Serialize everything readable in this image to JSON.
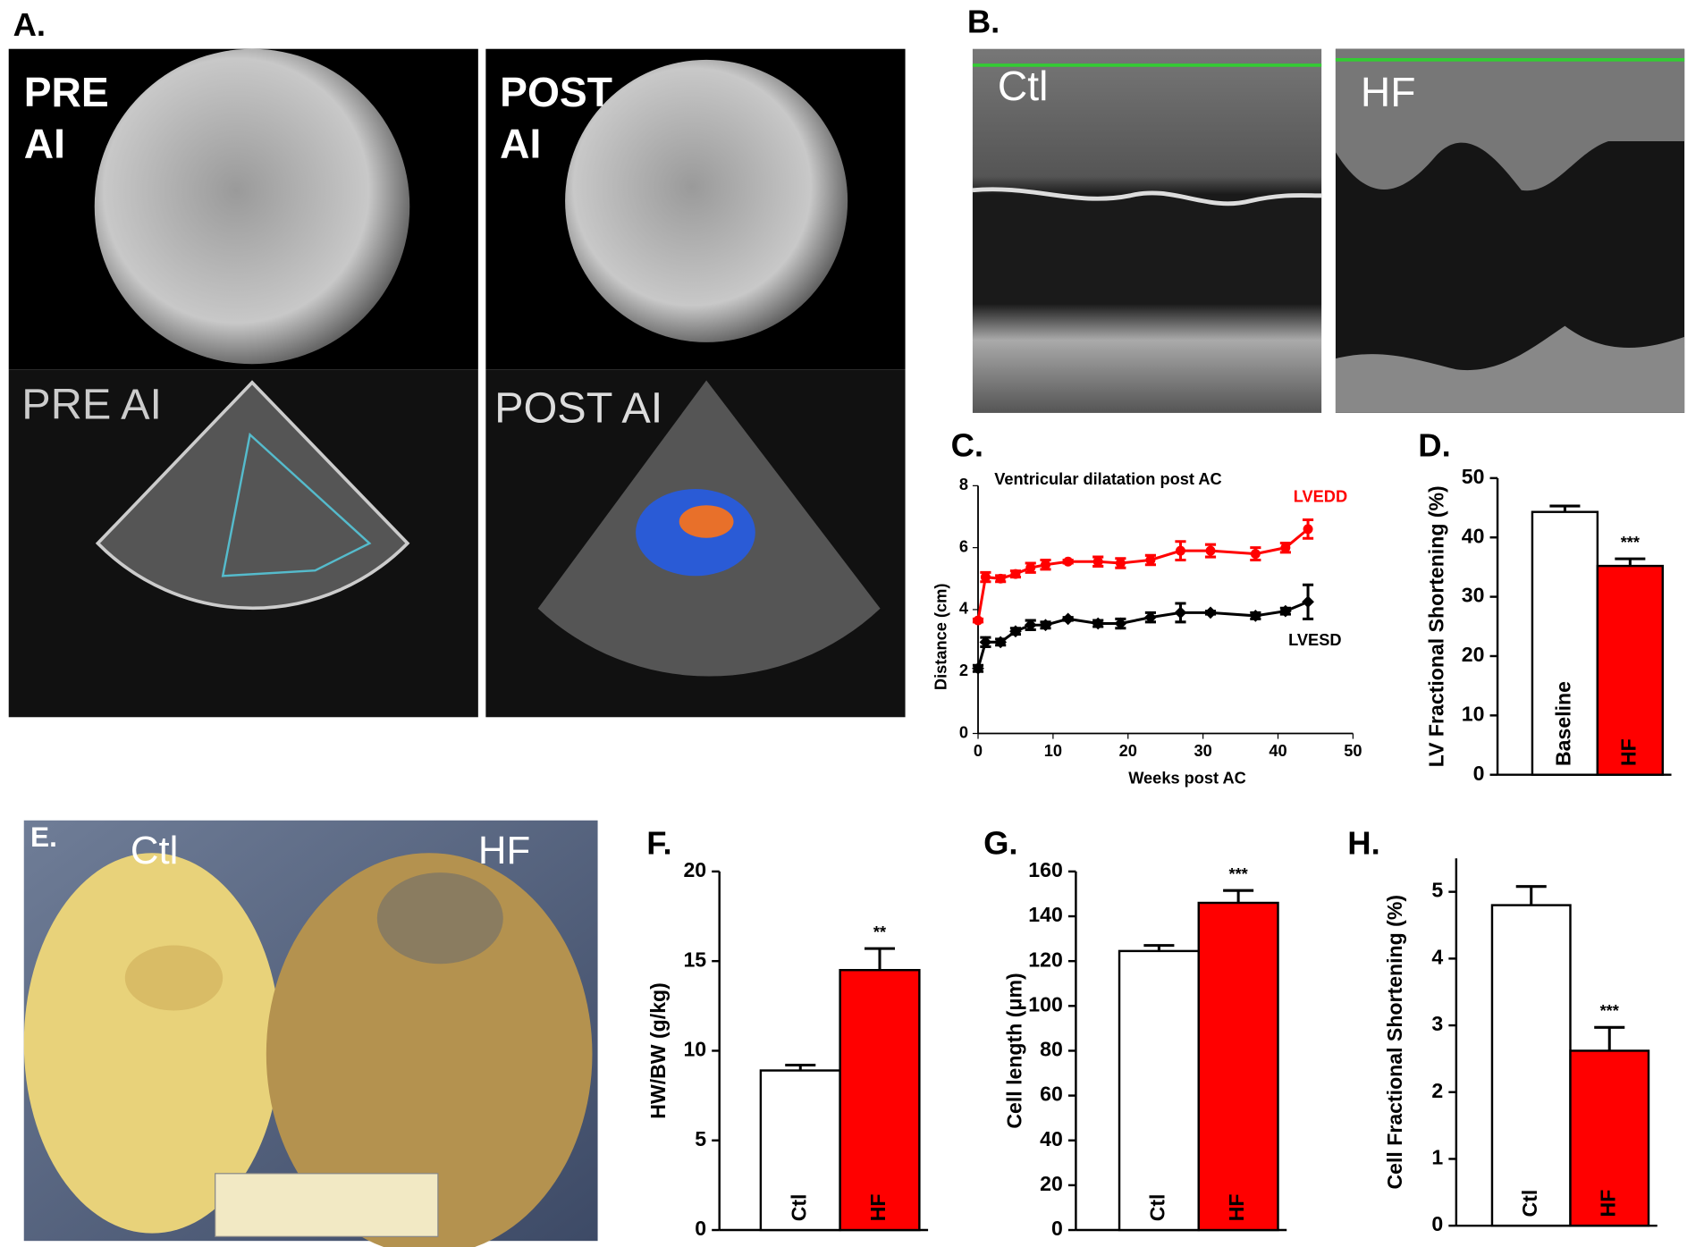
{
  "panel_A": {
    "label": "A.",
    "texts": [
      "PRE",
      "AI",
      "POST",
      "AI",
      "PRE AI",
      "POST AI"
    ]
  },
  "panel_B": {
    "label": "B.",
    "texts": [
      "Ctl",
      "HF"
    ]
  },
  "panel_E": {
    "label": "E.",
    "texts": [
      "Ctl",
      "HF"
    ]
  },
  "chart_data": [
    {
      "type": "line",
      "panel": "C.",
      "title": "Ventricular dilatation post AC",
      "x_label": "Weeks post AC",
      "y_label": "Distance (cm)",
      "x": [
        0,
        1,
        3,
        5,
        7,
        9,
        12,
        16,
        19,
        23,
        27,
        31,
        37,
        41,
        44
      ],
      "series": [
        {
          "name": "LVEDD",
          "color": "#ff0000",
          "values": [
            3.65,
            5.05,
            5.0,
            5.15,
            5.35,
            5.45,
            5.55,
            5.55,
            5.5,
            5.6,
            5.9,
            5.9,
            5.8,
            6.0,
            6.6
          ],
          "errors": [
            0.05,
            0.15,
            0.1,
            0.1,
            0.15,
            0.15,
            0.05,
            0.15,
            0.15,
            0.15,
            0.3,
            0.2,
            0.2,
            0.15,
            0.3
          ]
        },
        {
          "name": "LVESD",
          "color": "#000000",
          "values": [
            2.1,
            2.95,
            2.95,
            3.3,
            3.5,
            3.5,
            3.7,
            3.55,
            3.55,
            3.75,
            3.9,
            3.9,
            3.8,
            3.95,
            4.25
          ],
          "errors": [
            0.1,
            0.15,
            0.1,
            0.1,
            0.15,
            0.1,
            0.05,
            0.1,
            0.15,
            0.15,
            0.3,
            0.05,
            0.1,
            0.1,
            0.55
          ]
        }
      ],
      "xlim": [
        0,
        50
      ],
      "xticks": [
        0,
        10,
        20,
        30,
        40,
        50
      ],
      "ylim": [
        0,
        8
      ],
      "yticks": [
        0,
        2,
        4,
        6,
        8
      ]
    },
    {
      "type": "bar",
      "panel": "D.",
      "y_label": "LV Fractional Shortening  (%)",
      "categories": [
        "Baseline",
        "HF"
      ],
      "values": [
        44.3,
        35.2
      ],
      "errors": [
        1.0,
        1.2
      ],
      "colors": [
        "#ffffff",
        "#ff0000"
      ],
      "significance": "***",
      "ylim": [
        0,
        50
      ],
      "yticks": [
        0,
        10,
        20,
        30,
        40,
        50
      ]
    },
    {
      "type": "bar",
      "panel": "F.",
      "y_label": "HW/BW (g/kg)",
      "categories": [
        "Ctl",
        "HF"
      ],
      "values": [
        8.9,
        14.5
      ],
      "errors": [
        0.3,
        1.2
      ],
      "colors": [
        "#ffffff",
        "#ff0000"
      ],
      "significance": "**",
      "ylim": [
        0,
        20
      ],
      "yticks": [
        0,
        5,
        10,
        15,
        20
      ]
    },
    {
      "type": "bar",
      "panel": "G.",
      "y_label": "Cell length (μm)",
      "categories": [
        "Ctl",
        "HF"
      ],
      "values": [
        124.5,
        146
      ],
      "errors": [
        2.5,
        5.5
      ],
      "colors": [
        "#ffffff",
        "#ff0000"
      ],
      "significance": "***",
      "ylim": [
        0,
        160
      ],
      "yticks": [
        0,
        20,
        40,
        60,
        80,
        100,
        120,
        140,
        160
      ]
    },
    {
      "type": "bar",
      "panel": "H.",
      "y_label": "Cell Fractional Shortening (%)",
      "categories": [
        "Ctl",
        "HF"
      ],
      "values": [
        4.8,
        2.62
      ],
      "errors": [
        0.28,
        0.35
      ],
      "colors": [
        "#ffffff",
        "#ff0000"
      ],
      "significance": "***",
      "ylim": [
        0,
        5.5
      ],
      "yticks": [
        0,
        1,
        2,
        3,
        4,
        5
      ]
    }
  ]
}
